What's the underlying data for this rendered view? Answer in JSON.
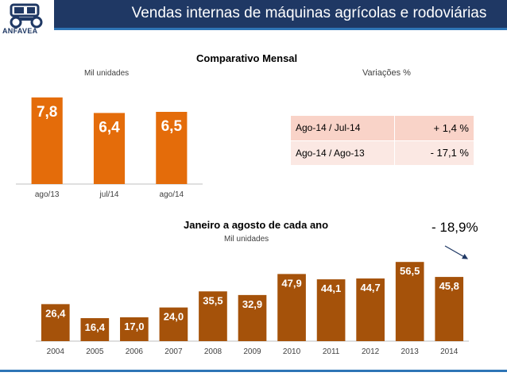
{
  "header": {
    "title": "Vendas internas de máquinas agrícolas e rodoviárias",
    "logo_text": "ANFAVEA"
  },
  "monthly": {
    "heading": "Comparativo Mensal",
    "unit_label": "Mil unidades"
  },
  "variations": {
    "heading": "Variações %",
    "rows": [
      {
        "period": "Ago-14 / Jul-14",
        "value": "+ 1,4 %"
      },
      {
        "period": "Ago-14 / Ago-13",
        "value": "- 17,1 %"
      }
    ]
  },
  "yearly": {
    "heading": "Janeiro a agosto de cada ano",
    "unit_label": "Mil unidades",
    "change_annotation": "- 18,9%"
  },
  "colors": {
    "header": "#1f3864",
    "monthly_bar": "#e46c0a",
    "yearly_bar": "#a5520a",
    "bar_label": "#ffffff"
  },
  "chart_data": [
    {
      "type": "bar",
      "title": "Comparativo Mensal",
      "ylabel": "Mil unidades",
      "categories": [
        "ago/13",
        "jul/14",
        "ago/14"
      ],
      "values": [
        7.8,
        6.4,
        6.5
      ],
      "value_labels": [
        "7,8",
        "6,4",
        "6,5"
      ],
      "ylim": [
        0,
        8
      ]
    },
    {
      "type": "bar",
      "title": "Janeiro a agosto de cada ano",
      "ylabel": "Mil unidades",
      "categories": [
        "2004",
        "2005",
        "2006",
        "2007",
        "2008",
        "2009",
        "2010",
        "2011",
        "2012",
        "2013",
        "2014"
      ],
      "values": [
        26.4,
        16.4,
        17.0,
        24.0,
        35.5,
        32.9,
        47.9,
        44.1,
        44.7,
        56.5,
        45.8
      ],
      "value_labels": [
        "26,4",
        "16,4",
        "17,0",
        "24,0",
        "35,5",
        "32,9",
        "47,9",
        "44,1",
        "44,7",
        "56,5",
        "45,8"
      ],
      "ylim": [
        0,
        60
      ]
    }
  ]
}
